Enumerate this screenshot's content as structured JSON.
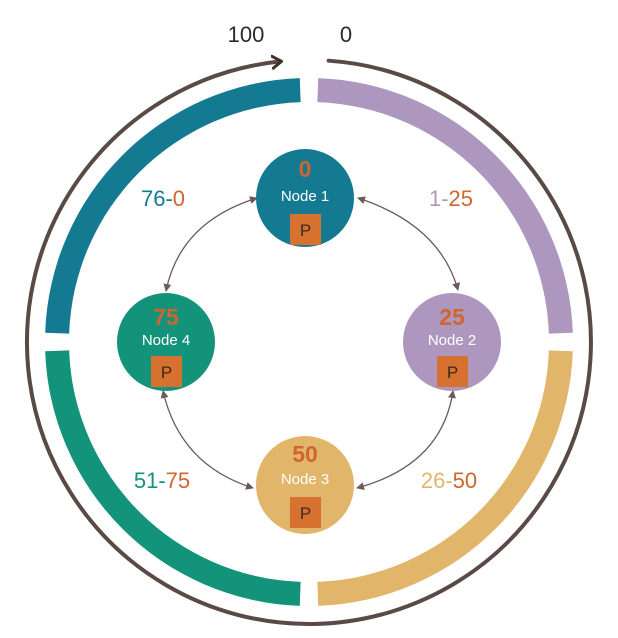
{
  "scale": {
    "max_label": "100",
    "min_label": "0"
  },
  "colors": {
    "node1": "#137a92",
    "node2": "#ad97be",
    "node3": "#e2b66a",
    "node4": "#13947a",
    "token": "#d2652b",
    "partition_box": "#d7712f",
    "outer_ring": "#5a4a45",
    "arrow": "#6b5c57"
  },
  "nodes": [
    {
      "token": "0",
      "name": "Node 1",
      "partition": "P"
    },
    {
      "token": "25",
      "name": "Node 2",
      "partition": "P"
    },
    {
      "token": "50",
      "name": "Node 3",
      "partition": "P"
    },
    {
      "token": "75",
      "name": "Node 4",
      "partition": "P"
    }
  ],
  "ranges": [
    {
      "start": "76",
      "separator": "-",
      "end": "0"
    },
    {
      "start": "1",
      "separator": "-",
      "end": "25"
    },
    {
      "start": "26",
      "separator": "-",
      "end": "50"
    },
    {
      "start": "51",
      "separator": "-",
      "end": "75"
    }
  ]
}
